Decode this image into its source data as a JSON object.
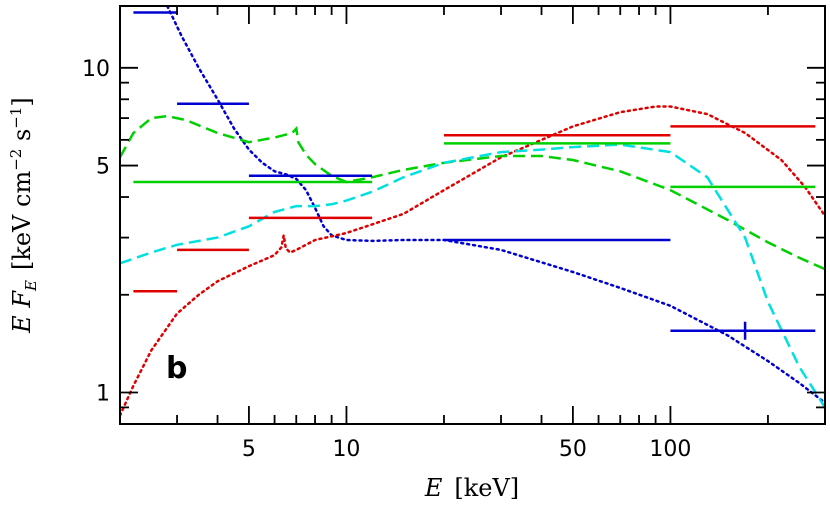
{
  "chart_data": {
    "type": "line",
    "panel_label": "b",
    "xlabel_var": "E",
    "xlabel_unit": "[keV]",
    "ylabel_var": "E F",
    "ylabel_sub": "E",
    "ylabel_unit": "[keV cm",
    "ylabel_exp1": "−2",
    "ylabel_mid": " s",
    "ylabel_exp2": "−1",
    "ylabel_close": "]",
    "x_scale": "log",
    "y_scale": "log",
    "xlim": [
      2.0,
      300
    ],
    "ylim": [
      0.8,
      15.5
    ],
    "x_ticks": [
      {
        "v": 5,
        "label": "5"
      },
      {
        "v": 10,
        "label": "10"
      },
      {
        "v": 50,
        "label": "50"
      },
      {
        "v": 100,
        "label": "100"
      }
    ],
    "y_ticks": [
      {
        "v": 1,
        "label": "1"
      },
      {
        "v": 5,
        "label": "5"
      },
      {
        "v": 10,
        "label": "10"
      }
    ],
    "colors": {
      "red": "#e00000",
      "green": "#00d000",
      "blue": "#0000d0",
      "cyan": "#00e0e0"
    },
    "data_bars": [
      {
        "color": "red",
        "x0": 2.2,
        "x1": 3.0,
        "y": 2.05
      },
      {
        "color": "red",
        "x0": 3.0,
        "x1": 5.0,
        "y": 2.75
      },
      {
        "color": "red",
        "x0": 5.0,
        "x1": 12.0,
        "y": 3.45
      },
      {
        "color": "red",
        "x0": 20.0,
        "x1": 100.0,
        "y": 6.2
      },
      {
        "color": "red",
        "x0": 100.0,
        "x1": 280.0,
        "y": 6.6
      },
      {
        "color": "green",
        "x0": 2.2,
        "x1": 12.0,
        "y": 4.45
      },
      {
        "color": "green",
        "x0": 20.0,
        "x1": 100.0,
        "y": 5.85
      },
      {
        "color": "green",
        "x0": 100.0,
        "x1": 280.0,
        "y": 4.3
      },
      {
        "color": "blue",
        "x0": 2.2,
        "x1": 3.0,
        "y": 14.8
      },
      {
        "color": "blue",
        "x0": 3.0,
        "x1": 5.0,
        "y": 7.75
      },
      {
        "color": "blue",
        "x0": 5.0,
        "x1": 12.0,
        "y": 4.65
      },
      {
        "color": "blue",
        "x0": 20.0,
        "x1": 100.0,
        "y": 2.95
      },
      {
        "color": "blue",
        "x0": 100.0,
        "x1": 280.0,
        "y": 1.55,
        "err_x": 170
      }
    ],
    "model_curves": [
      {
        "color": "blue",
        "style": "dotted",
        "x": [
          2.8,
          3.1,
          3.5,
          4.0,
          4.5,
          5.0,
          5.5,
          6.0,
          6.5,
          7.0,
          7.5,
          8.0,
          8.5,
          9.0,
          10.0,
          12.0,
          15.0,
          20.0,
          30.0,
          50.0,
          70.0,
          100.0,
          150.0,
          200.0,
          250.0,
          300.0
        ],
        "y": [
          15.5,
          12.5,
          10.0,
          8.0,
          6.5,
          5.6,
          5.1,
          4.8,
          4.7,
          4.55,
          4.2,
          3.7,
          3.25,
          3.05,
          2.95,
          2.93,
          2.95,
          2.95,
          2.75,
          2.35,
          2.1,
          1.85,
          1.5,
          1.25,
          1.07,
          0.93
        ]
      },
      {
        "color": "red",
        "style": "dotted",
        "x": [
          2.0,
          2.2,
          2.5,
          3.0,
          3.5,
          4.0,
          5.0,
          6.0,
          6.3,
          6.4,
          6.5,
          6.7,
          7.0,
          8.0,
          10.0,
          15.0,
          20.0,
          30.0,
          50.0,
          70.0,
          90.0,
          100.0,
          130.0,
          170.0,
          220.0,
          260.0,
          300.0
        ],
        "y": [
          0.85,
          1.05,
          1.35,
          1.75,
          2.0,
          2.2,
          2.45,
          2.65,
          2.8,
          3.05,
          2.78,
          2.7,
          2.75,
          2.95,
          3.1,
          3.55,
          4.2,
          5.3,
          6.6,
          7.3,
          7.6,
          7.6,
          7.2,
          6.3,
          5.2,
          4.3,
          3.5
        ]
      },
      {
        "color": "green",
        "style": "dashed",
        "x": [
          2.0,
          2.2,
          2.5,
          2.8,
          3.2,
          4.0,
          5.0,
          6.0,
          6.8,
          7.0,
          7.1,
          7.5,
          8.0,
          9.0,
          10.0,
          12.0,
          15.0,
          20.0,
          30.0,
          40.0,
          50.0,
          70.0,
          100.0,
          150.0,
          200.0,
          250.0,
          300.0
        ],
        "y": [
          5.3,
          6.3,
          7.0,
          7.1,
          6.9,
          6.3,
          5.9,
          6.1,
          6.3,
          6.5,
          5.9,
          5.4,
          5.05,
          4.65,
          4.45,
          4.6,
          4.85,
          5.1,
          5.35,
          5.35,
          5.2,
          4.8,
          4.2,
          3.4,
          2.9,
          2.6,
          2.4
        ]
      },
      {
        "color": "cyan",
        "style": "dashed",
        "x": [
          2.0,
          2.5,
          3.0,
          4.0,
          5.0,
          6.0,
          7.0,
          8.0,
          9.0,
          10.0,
          12.0,
          15.0,
          20.0,
          30.0,
          40.0,
          50.0,
          70.0,
          100.0,
          130.0,
          170.0,
          200.0,
          250.0,
          300.0
        ],
        "y": [
          2.5,
          2.7,
          2.85,
          3.0,
          3.25,
          3.6,
          3.75,
          3.75,
          3.8,
          3.9,
          4.15,
          4.6,
          5.1,
          5.5,
          5.6,
          5.7,
          5.8,
          5.5,
          4.6,
          3.0,
          1.9,
          1.2,
          0.9
        ]
      }
    ]
  }
}
